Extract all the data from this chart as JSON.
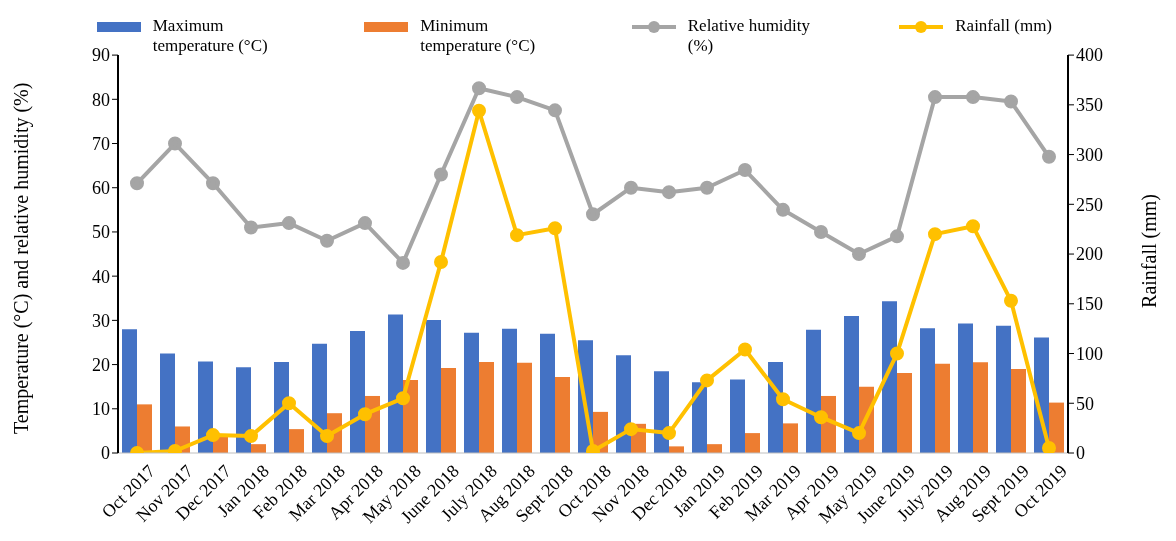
{
  "chart_data": {
    "type": "bar",
    "categories": [
      "Oct 2017",
      "Nov 2017",
      "Dec 2017",
      "Jan 2018",
      "Feb 2018",
      "Mar 2018",
      "Apr 2018",
      "May 2018",
      "June 2018",
      "July 2018",
      "Aug 2018",
      "Sept 2018",
      "Oct 2018",
      "Nov 2018",
      "Dec 2018",
      "Jan 2019",
      "Feb 2019",
      "Mar 2019",
      "Apr 2019",
      "May 2019",
      "June 2019",
      "July 2019",
      "Aug 2019",
      "Sept 2019",
      "Oct 2019"
    ],
    "series": [
      {
        "name": "Maximum temperature (°C)",
        "color": "#4472c4",
        "values": [
          28,
          22.5,
          20.7,
          19.4,
          20.6,
          24.7,
          27.6,
          31.3,
          30.1,
          27.2,
          28.1,
          27,
          25.5,
          22.1,
          18.5,
          16,
          16.6,
          20.6,
          27.9,
          31,
          34.3,
          28.2,
          29.3,
          28.8,
          26.1
        ]
      },
      {
        "name": "Minimum temperature (°C)",
        "color": "#ed7d31",
        "values": [
          11,
          6,
          4,
          2,
          5.4,
          9,
          12.9,
          16.5,
          19.2,
          20.6,
          20.4,
          17.2,
          9.3,
          6.6,
          1.5,
          2,
          4.5,
          6.7,
          12.9,
          15,
          18.1,
          20.2,
          20.5,
          19,
          11.4
        ]
      },
      {
        "name": "Relative humidity (%)",
        "type": "line",
        "color": "#a5a5a5",
        "values": [
          61,
          70,
          61,
          51,
          52,
          48,
          52,
          43,
          63,
          82.5,
          80.5,
          77.5,
          54,
          60,
          59,
          60,
          64,
          55,
          50,
          45,
          49,
          80.5,
          80.5,
          79.5,
          67
        ]
      },
      {
        "name": "Rainfall (mm)",
        "type": "line",
        "axis": "y2",
        "color": "#ffc000",
        "values": [
          0,
          2,
          18,
          17,
          50,
          17,
          39,
          55,
          192,
          344,
          219,
          226,
          2,
          24,
          20,
          73,
          104,
          54,
          36,
          20,
          100,
          220,
          228,
          153,
          5
        ]
      }
    ],
    "ylabel": "Temperature (°C) and relative humidity (%)",
    "y2label": "Rainfall (mm)",
    "ylim": [
      0,
      90
    ],
    "yticks": [
      0,
      10,
      20,
      30,
      40,
      50,
      60,
      70,
      80,
      90
    ],
    "y2lim": [
      0,
      400
    ],
    "y2ticks": [
      0,
      50,
      100,
      150,
      200,
      250,
      300,
      350,
      400
    ],
    "marker": "circle",
    "grid": false,
    "legend": "top"
  }
}
